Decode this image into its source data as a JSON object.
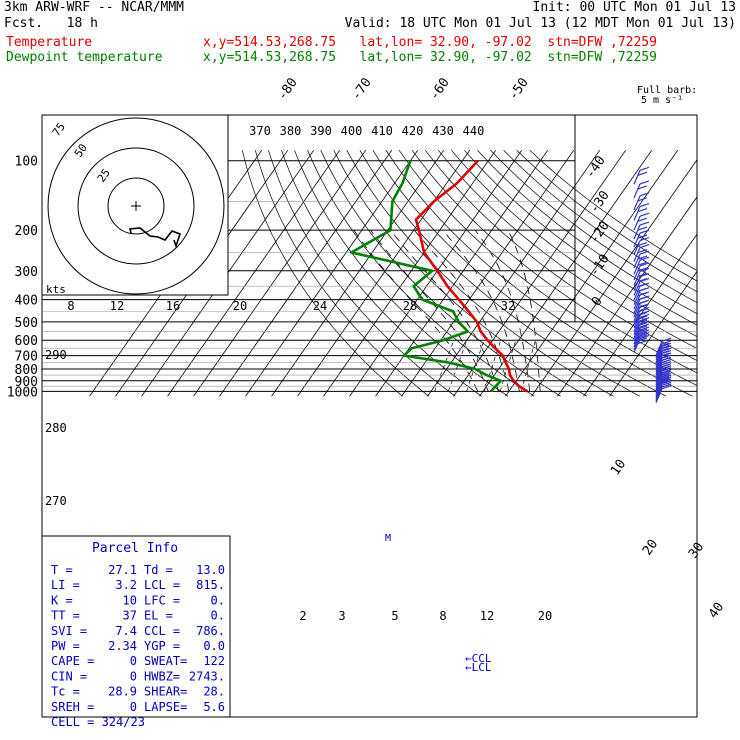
{
  "header": {
    "model": "3km ARW-WRF -- NCAR/MMM",
    "init": "Init: 00 UTC Mon 01 Jul 13",
    "fcst": "Fcst.   18 h",
    "valid": "Valid: 18 UTC Mon 01 Jul 13 (12 MDT Mon 01 Jul 13)",
    "temp_label": "Temperature",
    "dew_label": "Dewpoint temperature",
    "temp_loc": "x,y=514.53,268.75   lat,lon= 32.90, -97.02  stn=DFW ,72259",
    "dew_loc": "x,y=514.53,268.75   lat,lon= 32.90, -97.02  stn=DFW ,72259"
  },
  "colors": {
    "temperature": "#e00000",
    "dewpoint": "#008000",
    "barbs": "#3333cc",
    "parcel_text": "#0000c0"
  },
  "chart_data": {
    "type": "skew-t",
    "pressure_levels": [
      100,
      200,
      300,
      400,
      500,
      600,
      700,
      800,
      900,
      1000
    ],
    "skewed_isotherm_labels": [
      -80,
      -70,
      -60,
      -50,
      -40,
      -30,
      -20,
      -10,
      0,
      10,
      20,
      30,
      40
    ],
    "theta_labels": [
      370,
      380,
      390,
      400,
      410,
      420,
      430,
      440
    ],
    "theta_labels_lower": [
      290,
      280,
      270
    ],
    "mixing_ratio_labels_top": [
      8,
      12,
      16,
      20,
      24,
      28,
      32
    ],
    "mixing_ratio_labels_low": [
      2,
      3,
      5,
      8,
      12,
      20
    ],
    "hodograph": {
      "ring_labels": [
        75,
        50,
        25
      ],
      "units": "kts"
    },
    "barb_legend": [
      "Full barb:",
      "5 m s⁻¹"
    ],
    "annotations": [
      "←CCL",
      "←LCL",
      "M"
    ],
    "temperature": {
      "name": "Temperature",
      "p": [
        1000,
        950,
        900,
        850,
        800,
        750,
        700,
        650,
        600,
        550,
        500,
        450,
        400,
        350,
        300,
        250,
        200,
        180,
        150,
        125,
        100
      ],
      "t": [
        27.1,
        22.5,
        19.0,
        16.0,
        14.0,
        11.0,
        8.0,
        3.0,
        -2.0,
        -7.0,
        -11.0,
        -17.0,
        -24.0,
        -32.0,
        -40.0,
        -50.0,
        -58.0,
        -62.0,
        -60.0,
        -56.0,
        -54.0
      ]
    },
    "dewpoint": {
      "name": "Dewpoint temperature",
      "p": [
        1000,
        950,
        900,
        850,
        800,
        750,
        700,
        650,
        600,
        550,
        500,
        450,
        400,
        350,
        300,
        250,
        200,
        150,
        125,
        100
      ],
      "td": [
        13.0,
        13.5,
        14.0,
        7.0,
        1.0,
        -11.0,
        -30.0,
        -29.0,
        -19.0,
        -12.0,
        -18.0,
        -23.0,
        -38.0,
        -45.0,
        -42.0,
        -78.0,
        -69.0,
        -76.0,
        -77.0,
        -80.0
      ]
    }
  },
  "parcel_info": {
    "title": "Parcel Info",
    "rows": [
      [
        "T  =",
        "27.1",
        "Td =",
        "13.0"
      ],
      [
        "LI =",
        "3.2",
        "LCL =",
        "815."
      ],
      [
        "K  =",
        "10",
        "LFC =",
        "0."
      ],
      [
        "TT =",
        "37",
        "EL  =",
        "0."
      ],
      [
        "SVI =",
        "7.4",
        "CCL =",
        "786."
      ],
      [
        "PW =",
        "2.34",
        "YGP =",
        "0.0"
      ],
      [
        "CAPE =",
        "0",
        "SWEAT=",
        "122"
      ],
      [
        "CIN =",
        "0",
        "HWBZ=",
        "2743."
      ],
      [
        "Tc =",
        "28.9",
        "SHEAR=",
        "28."
      ],
      [
        "SREH =",
        "0",
        "LAPSE=",
        "5.6"
      ]
    ],
    "cell": "CELL = 324/23"
  }
}
